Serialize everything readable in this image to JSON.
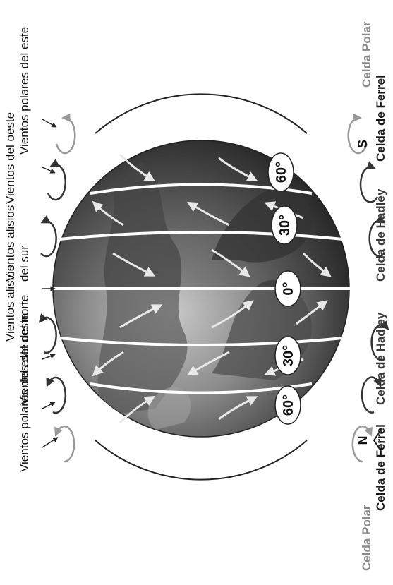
{
  "compass": {
    "north": "N",
    "south": "S"
  },
  "latitudes": [
    {
      "id": "n60",
      "label": "60°"
    },
    {
      "id": "n30",
      "label": "30°"
    },
    {
      "id": "eq",
      "label": "0°"
    },
    {
      "id": "s30",
      "label": "30°"
    },
    {
      "id": "s60",
      "label": "60°"
    }
  ],
  "winds": {
    "polar_east_n": "Vientos polares del este",
    "west_n": "Vientos del oeste",
    "trade_n_line1": "Vientos alisios",
    "trade_n_line2": "del norte",
    "trade_s_line1": "Vientos alisios",
    "trade_s_line2": "del sur",
    "west_s": "Vientos del oeste",
    "polar_east_s": "Vientos polares del este"
  },
  "cells": {
    "polar_n": "Celda Polar",
    "ferrel_n": "Celda de Ferrel",
    "hadley_n": "Celda de Hadley",
    "hadley_s": "Celda de Hadley",
    "ferrel_s": "Celda de Ferrel",
    "polar_s": "Celda Polar"
  },
  "colors": {
    "polar_cell": "#8a8a8a",
    "ferrel_cell": "#1a1a1a",
    "hadley_cell": "#3a3a3a",
    "globe_light": "#b5b5b5",
    "globe_dark": "#2e2e2e"
  }
}
